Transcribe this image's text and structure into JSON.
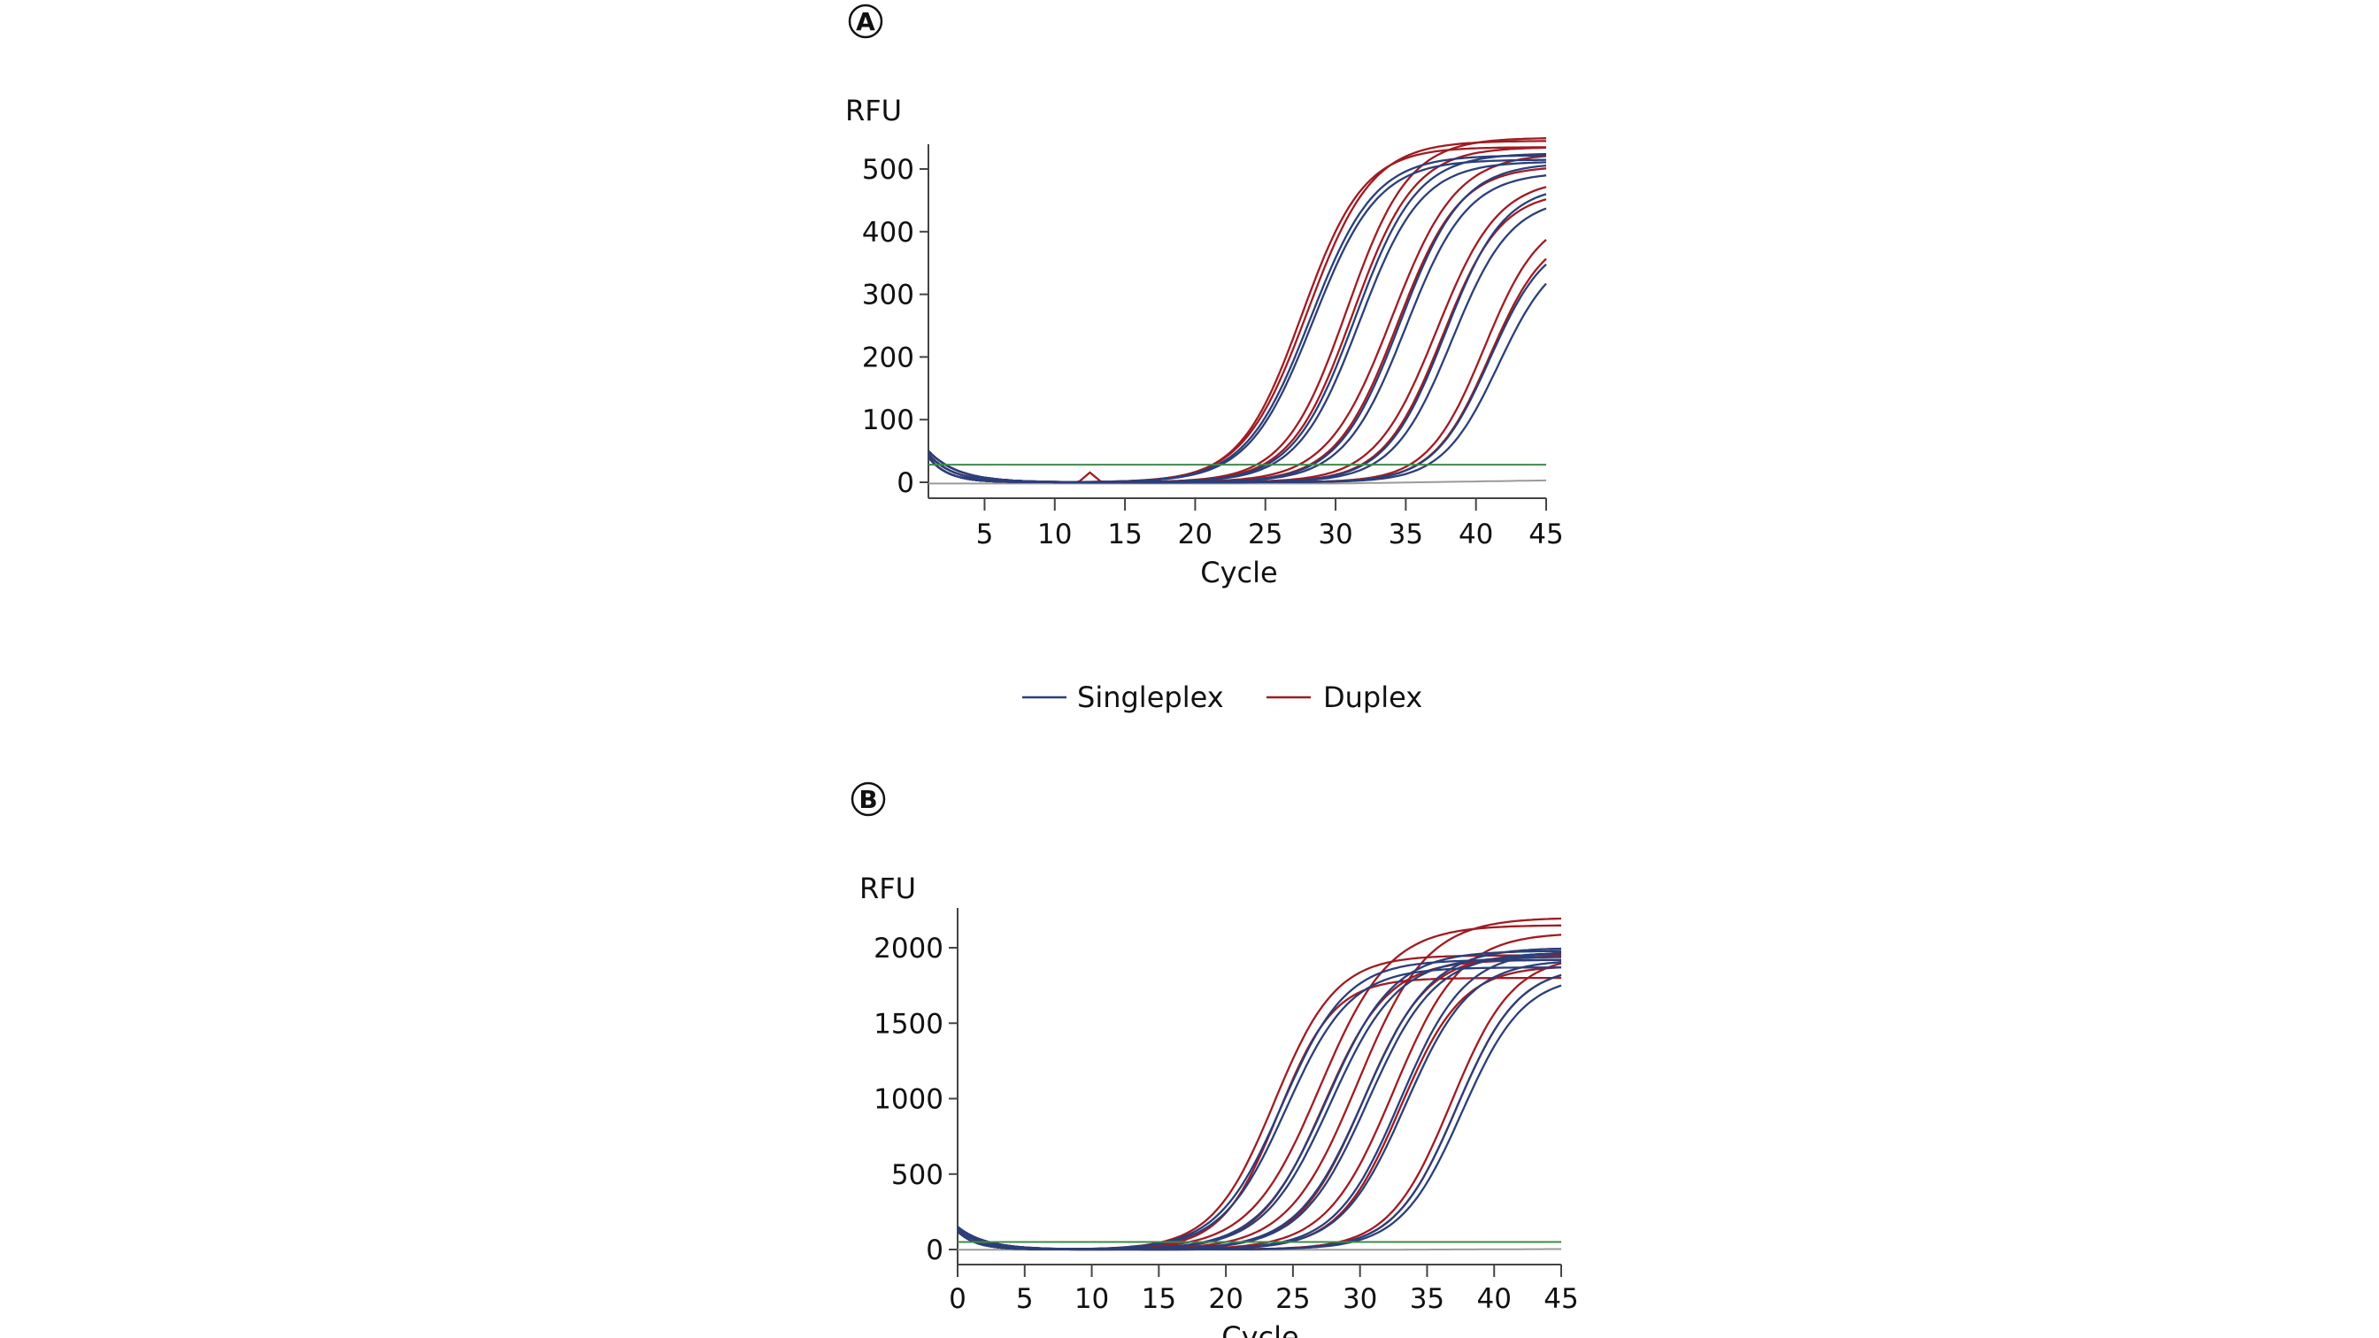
{
  "colors": {
    "singleplex": "#2b3f7a",
    "duplex": "#a01c22",
    "threshold": "#3e8a4a",
    "ntc": "#9a9a9a",
    "axis": "#444444"
  },
  "legend": {
    "items": [
      {
        "label": "Singleplex",
        "series": "singleplex"
      },
      {
        "label": "Duplex",
        "series": "duplex"
      }
    ]
  },
  "chart_data": [
    {
      "panel": "A",
      "type": "line",
      "xlabel": "Cycle",
      "ylabel": "RFU",
      "xlim": [
        1,
        45
      ],
      "ylim": [
        -25,
        540
      ],
      "xticks": [
        5,
        10,
        15,
        20,
        25,
        30,
        35,
        40,
        45
      ],
      "yticks": [
        0,
        100,
        200,
        300,
        400,
        500
      ],
      "threshold": 28,
      "baseline_start": 50,
      "note": "sigmoid curves as [midpoint cycle, plateau RFU, slope]",
      "series": [
        {
          "name": "Duplex",
          "key": "duplex",
          "curves": [
            [
              27.6,
              535,
              2.2
            ],
            [
              28.0,
              545,
              2.3
            ],
            [
              30.8,
              550,
              2.2
            ],
            [
              31.2,
              535,
              2.2
            ],
            [
              34.0,
              525,
              2.3
            ],
            [
              34.4,
              505,
              2.2
            ],
            [
              37.2,
              485,
              2.2
            ],
            [
              37.6,
              465,
              2.1
            ],
            [
              40.6,
              430,
              2.0
            ],
            [
              41.0,
              405,
              2.0
            ]
          ],
          "spike": {
            "cycle": 12.5,
            "rfu": 15
          }
        },
        {
          "name": "Singleplex",
          "key": "singleplex",
          "curves": [
            [
              28.2,
              522,
              2.3
            ],
            [
              28.4,
              515,
              2.3
            ],
            [
              31.4,
              525,
              2.2
            ],
            [
              31.7,
              512,
              2.2
            ],
            [
              34.6,
              510,
              2.2
            ],
            [
              35.0,
              495,
              2.2
            ],
            [
              37.8,
              475,
              2.1
            ],
            [
              38.3,
              455,
              2.1
            ],
            [
              41.0,
              395,
              2.0
            ],
            [
              41.6,
              375,
              2.0
            ]
          ]
        }
      ]
    },
    {
      "panel": "B",
      "type": "line",
      "xlabel": "Cycle",
      "ylabel": "RFU",
      "xlim": [
        0,
        45
      ],
      "ylim": [
        -70,
        2250
      ],
      "xticks": [
        0,
        5,
        10,
        15,
        20,
        25,
        30,
        35,
        40,
        45
      ],
      "yticks": [
        0,
        500,
        1000,
        1500,
        2000
      ],
      "threshold": 50,
      "baseline_start": 150,
      "note": "sigmoid curves as [midpoint cycle, plateau RFU, slope]",
      "series": [
        {
          "name": "Duplex",
          "key": "duplex",
          "curves": [
            [
              23.6,
              1950,
              2.3
            ],
            [
              23.9,
              1800,
              2.1
            ],
            [
              27.0,
              2150,
              2.6
            ],
            [
              27.3,
              1920,
              2.4
            ],
            [
              29.8,
              2200,
              2.6
            ],
            [
              30.2,
              1960,
              2.4
            ],
            [
              32.5,
              2100,
              2.5
            ],
            [
              33.0,
              1880,
              2.3
            ],
            [
              36.8,
              1950,
              2.3
            ],
            [
              37.2,
              1880,
              2.3
            ]
          ]
        },
        {
          "name": "Singleplex",
          "key": "singleplex",
          "curves": [
            [
              24.2,
              1920,
              2.4
            ],
            [
              24.5,
              1870,
              2.4
            ],
            [
              27.5,
              1980,
              2.5
            ],
            [
              27.8,
              1940,
              2.5
            ],
            [
              30.3,
              2000,
              2.5
            ],
            [
              30.6,
              1970,
              2.5
            ],
            [
              33.0,
              1980,
              2.4
            ],
            [
              33.4,
              1920,
              2.4
            ],
            [
              37.2,
              1880,
              2.3
            ],
            [
              37.6,
              1820,
              2.3
            ]
          ]
        }
      ]
    }
  ]
}
